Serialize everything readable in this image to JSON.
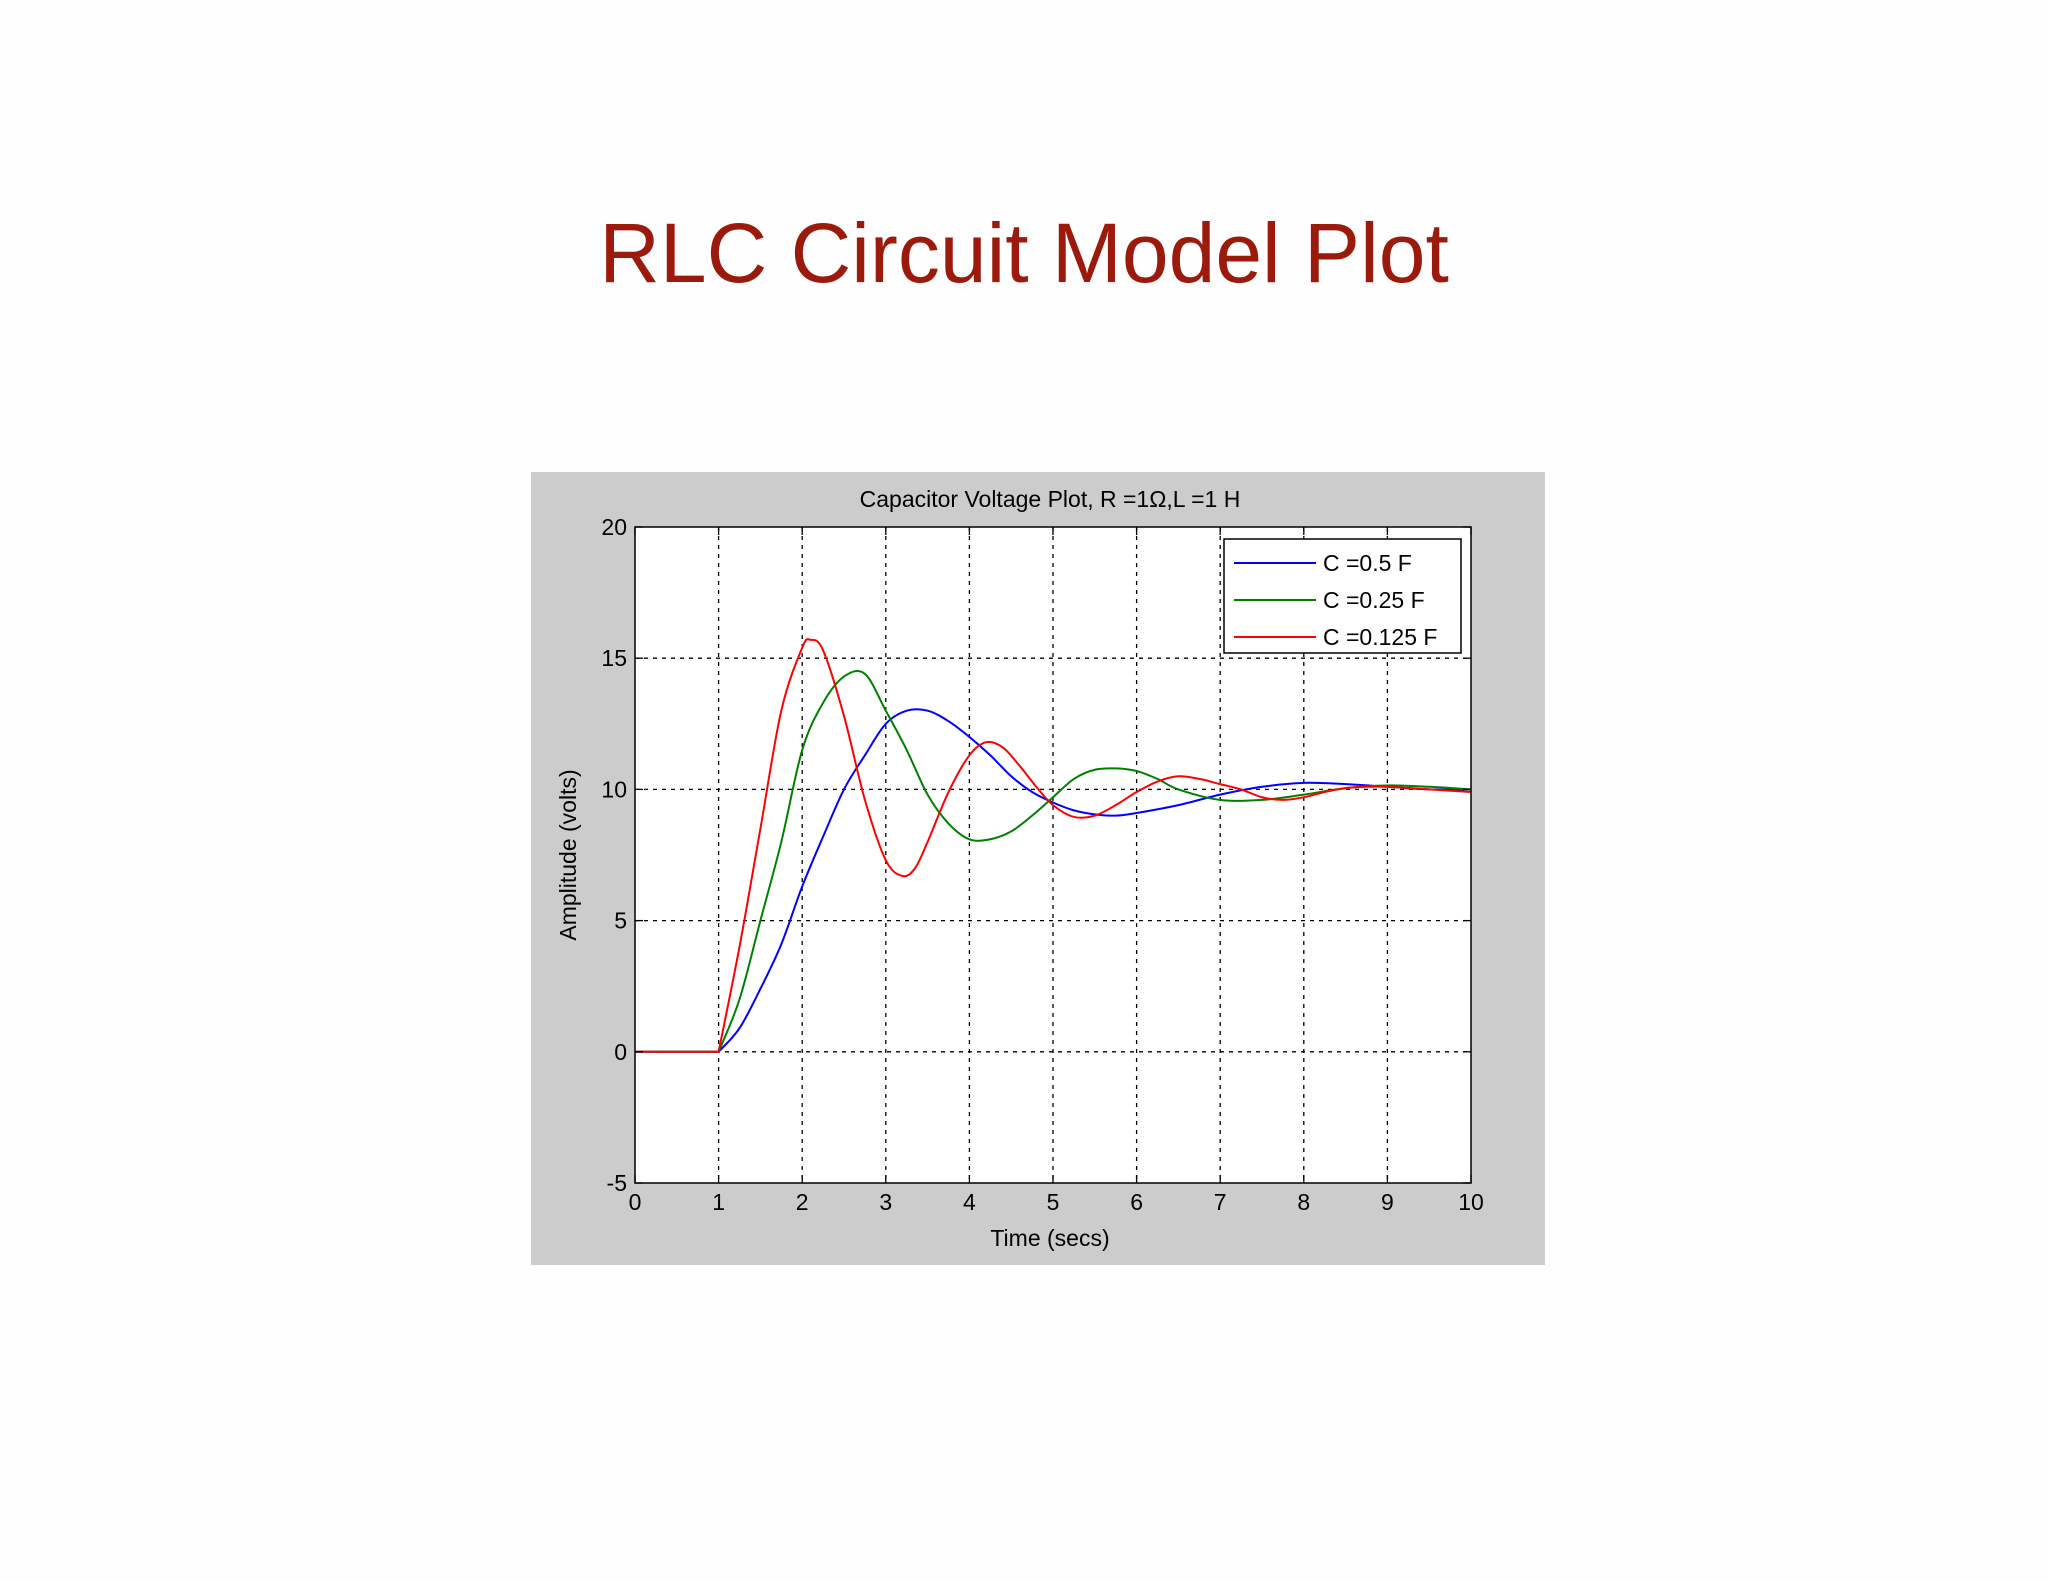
{
  "slide": {
    "title": "RLC Circuit Model Plot"
  },
  "chart_data": {
    "type": "line",
    "title": "Capacitor Voltage Plot, R =1Ω,L =1 H",
    "xlabel": "Time (secs)",
    "ylabel": "Amplitude (volts)",
    "xlim": [
      0,
      10
    ],
    "ylim": [
      -5,
      20
    ],
    "xticks": [
      0,
      1,
      2,
      3,
      4,
      5,
      6,
      7,
      8,
      9,
      10
    ],
    "yticks": [
      -5,
      0,
      5,
      10,
      15,
      20
    ],
    "grid": true,
    "legend_position": "top-right",
    "series": [
      {
        "name": "C =0.5 F",
        "color": "#0000ff",
        "x": [
          0,
          1,
          1.25,
          1.5,
          1.75,
          2,
          2.25,
          2.5,
          2.75,
          3,
          3.25,
          3.5,
          3.75,
          4,
          4.25,
          4.5,
          4.75,
          5,
          5.25,
          5.5,
          5.75,
          6,
          6.5,
          7,
          7.5,
          8,
          8.5,
          9,
          9.5,
          10
        ],
        "y": [
          0,
          0,
          0.9,
          2.4,
          4.1,
          6.3,
          8.2,
          10.0,
          11.3,
          12.5,
          13.0,
          13.0,
          12.6,
          12.0,
          11.3,
          10.5,
          9.9,
          9.5,
          9.2,
          9.05,
          9.0,
          9.1,
          9.4,
          9.8,
          10.1,
          10.25,
          10.2,
          10.1,
          10.0,
          10.0
        ]
      },
      {
        "name": "C =0.25 F",
        "color": "#008000",
        "x": [
          0,
          1,
          1.25,
          1.5,
          1.75,
          2,
          2.25,
          2.5,
          2.75,
          3,
          3.25,
          3.5,
          3.75,
          4,
          4.25,
          4.5,
          4.75,
          5,
          5.25,
          5.5,
          5.75,
          6,
          6.25,
          6.5,
          7,
          7.5,
          8,
          8.5,
          9,
          9.5,
          10
        ],
        "y": [
          0,
          0,
          2.0,
          5.0,
          8.0,
          11.5,
          13.3,
          14.3,
          14.4,
          13.0,
          11.5,
          9.8,
          8.7,
          8.1,
          8.1,
          8.4,
          9.0,
          9.7,
          10.4,
          10.75,
          10.8,
          10.7,
          10.4,
          10.0,
          9.6,
          9.6,
          9.8,
          10.05,
          10.15,
          10.1,
          10.0
        ]
      },
      {
        "name": "C =0.125 F",
        "color": "#ff0000",
        "x": [
          0,
          1,
          1.25,
          1.5,
          1.75,
          2,
          2.1,
          2.25,
          2.5,
          2.75,
          3,
          3.2,
          3.35,
          3.5,
          3.75,
          4,
          4.2,
          4.4,
          4.6,
          4.8,
          5,
          5.25,
          5.5,
          5.75,
          6,
          6.25,
          6.5,
          6.75,
          7,
          7.25,
          7.5,
          7.75,
          8,
          8.25,
          8.5,
          8.75,
          9,
          9.5,
          10
        ],
        "y": [
          0,
          0,
          4.0,
          8.5,
          13.0,
          15.4,
          15.7,
          15.3,
          12.8,
          9.6,
          7.3,
          6.7,
          7.0,
          8.0,
          9.9,
          11.3,
          11.8,
          11.6,
          10.9,
          10.1,
          9.4,
          8.95,
          9.0,
          9.4,
          9.9,
          10.3,
          10.5,
          10.4,
          10.2,
          10.0,
          9.7,
          9.6,
          9.7,
          9.9,
          10.05,
          10.1,
          10.1,
          10.0,
          9.9
        ]
      }
    ]
  }
}
